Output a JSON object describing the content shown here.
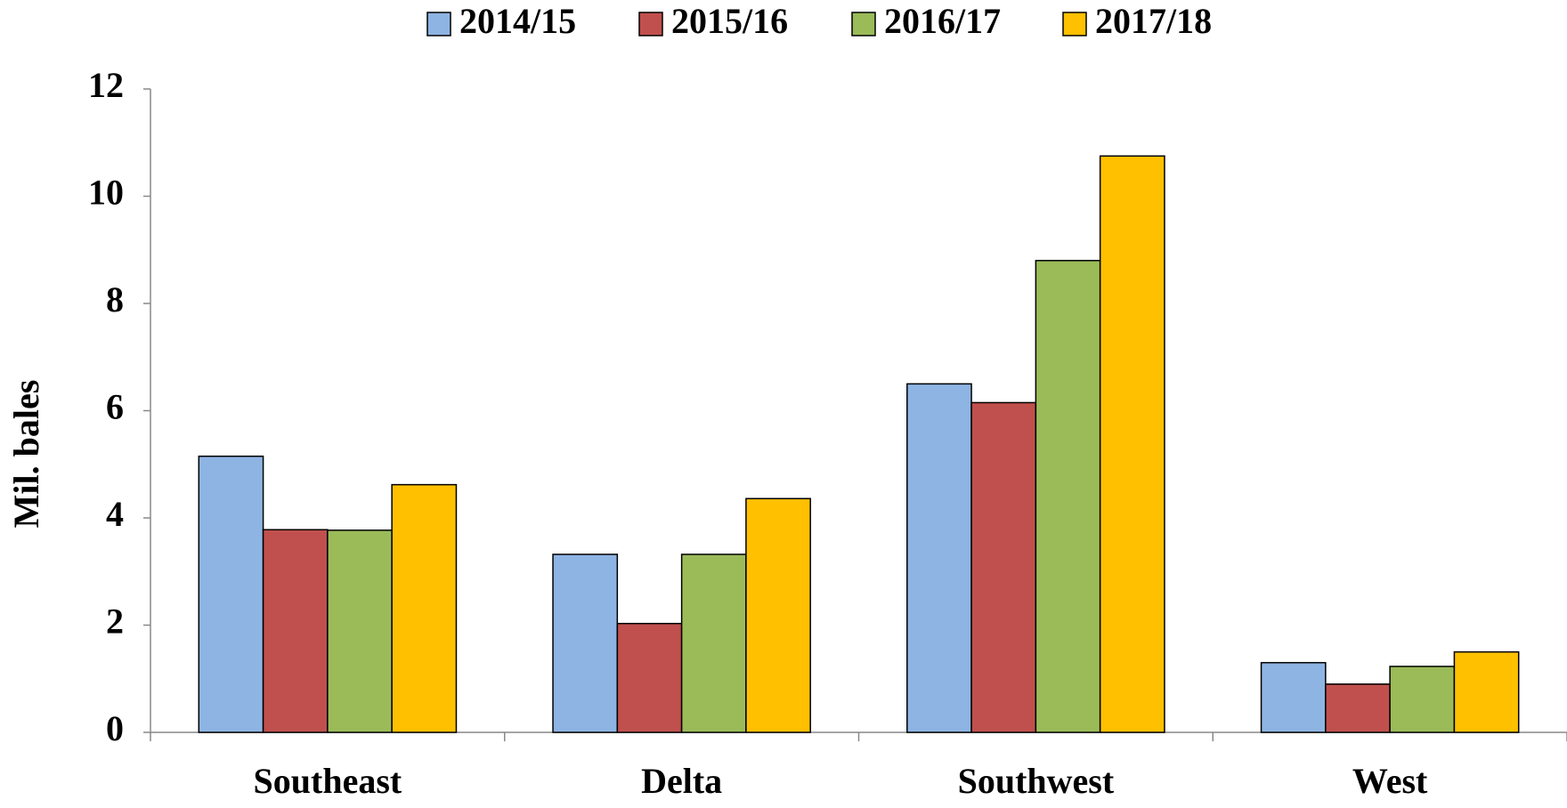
{
  "chart_data": {
    "type": "bar",
    "categories": [
      "Southeast",
      "Delta",
      "Southwest",
      "West"
    ],
    "y_label": "Mil. bales",
    "series": [
      {
        "name": "2014/15",
        "color": "#8eb4e3",
        "values": [
          5.15,
          3.32,
          6.5,
          1.3
        ]
      },
      {
        "name": "2015/16",
        "color": "#c0504d",
        "values": [
          3.78,
          2.03,
          6.15,
          0.9
        ]
      },
      {
        "name": "2016/17",
        "color": "#9bbb59",
        "values": [
          3.77,
          3.32,
          8.8,
          1.23
        ]
      },
      {
        "name": "2017/18",
        "color": "#ffc000",
        "values": [
          4.62,
          4.36,
          10.75,
          1.5
        ]
      }
    ],
    "ylim": [
      0,
      12
    ],
    "yticks": [
      0,
      2,
      4,
      6,
      8,
      10,
      12
    ],
    "grid": false,
    "legend": "top"
  }
}
